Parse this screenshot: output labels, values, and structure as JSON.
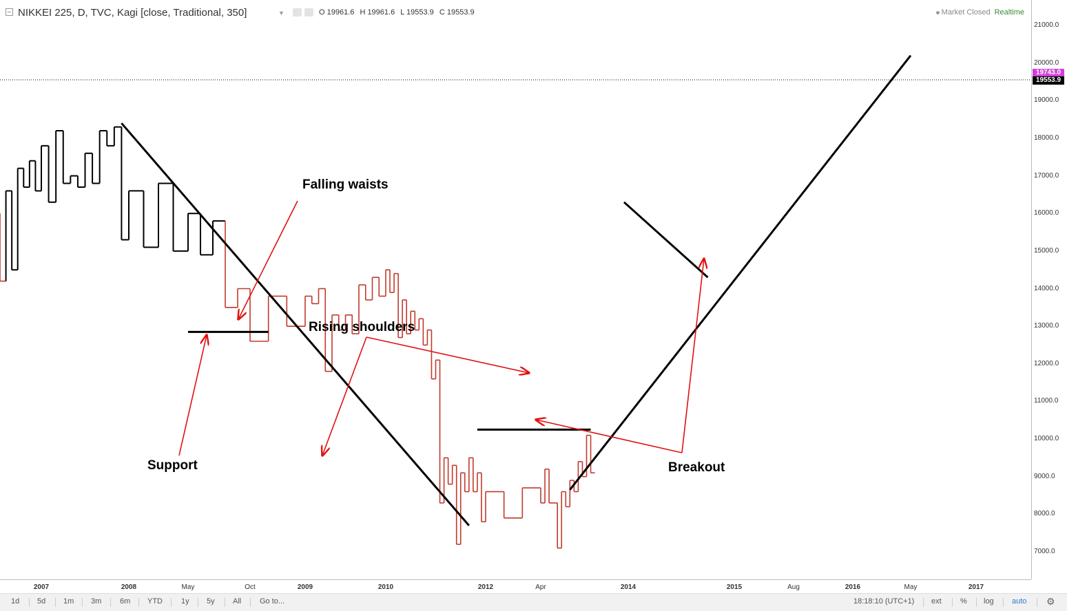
{
  "header": {
    "title": "NIKKEI 225, D, TVC, Kagi [close, Traditional, 350]",
    "ohlc": {
      "o": "O 19961.6",
      "h": "H 19961.6",
      "l": "L 19553.9",
      "c": "C 19553.9"
    },
    "market_status": "Market Closed",
    "realtime": "Realtime"
  },
  "price_axis": {
    "labels": [
      "21000.0",
      "20000.0",
      "19000.0",
      "18000.0",
      "17000.0",
      "16000.0",
      "15000.0",
      "14000.0",
      "13000.0",
      "12000.0",
      "11000.0",
      "10000.0",
      "9000.0",
      "8000.0",
      "7000.0"
    ],
    "tag_high": "19743.0",
    "tag_last": "19553.9"
  },
  "time_axis": {
    "labels": [
      "2007",
      "2008",
      "May",
      "Oct",
      "2009",
      "2010",
      "2012",
      "Apr",
      "2014",
      "2015",
      "Aug",
      "2016",
      "May",
      "2017"
    ]
  },
  "annotations": {
    "falling_waists": "Falling waists",
    "rising_shoulders": "Rising shoulders",
    "support": "Support",
    "breakout": "Breakout"
  },
  "footer": {
    "ranges": [
      "1d",
      "5d",
      "1m",
      "3m",
      "6m",
      "YTD",
      "1y",
      "5y",
      "All"
    ],
    "goto": "Go to...",
    "clock": "18:18:10 (UTC+1)",
    "options": [
      "ext",
      "%",
      "log",
      "auto"
    ]
  },
  "colors": {
    "yang": "#000000",
    "yin": "#c0392b",
    "annotation_arrow": "#e01010",
    "accent": "#2e7bcf",
    "price_tag_high": "#d13fd8"
  },
  "chart_data": {
    "type": "kagi",
    "symbol": "NIKKEI 225",
    "reversal": 350,
    "ylim": [
      6500,
      21500
    ],
    "turning_points": [
      {
        "time": "2006-06",
        "price": 16000
      },
      {
        "time": "2006-07",
        "price": 14200
      },
      {
        "time": "2006-08",
        "price": 16600
      },
      {
        "time": "2006-09",
        "price": 14500
      },
      {
        "time": "2006-10",
        "price": 17200
      },
      {
        "time": "2006-11",
        "price": 16700
      },
      {
        "time": "2006-12",
        "price": 17400
      },
      {
        "time": "2007-01",
        "price": 16600
      },
      {
        "time": "2007-02",
        "price": 17800
      },
      {
        "time": "2007-03",
        "price": 16300
      },
      {
        "time": "2007-04",
        "price": 18200
      },
      {
        "time": "2007-05",
        "price": 16800
      },
      {
        "time": "2007-06",
        "price": 17000
      },
      {
        "time": "2007-07",
        "price": 16700
      },
      {
        "time": "2007-08",
        "price": 17600
      },
      {
        "time": "2007-09",
        "price": 16800
      },
      {
        "time": "2007-10",
        "price": 18200
      },
      {
        "time": "2007-11",
        "price": 17800
      },
      {
        "time": "2007-12",
        "price": 18300
      },
      {
        "time": "2008-01",
        "price": 15300
      },
      {
        "time": "2008-02",
        "price": 16600
      },
      {
        "time": "2008-03",
        "price": 15100
      },
      {
        "time": "2008-04",
        "price": 16800
      },
      {
        "time": "2008-05",
        "price": 15000
      },
      {
        "time": "2008-06",
        "price": 16000
      },
      {
        "time": "2008-07",
        "price": 14900
      },
      {
        "time": "2008-08",
        "price": 15800
      },
      {
        "time": "2008-09",
        "price": 13500
      },
      {
        "time": "2008-10",
        "price": 14000
      },
      {
        "time": "2008-11",
        "price": 12600
      },
      {
        "time": "2008-12",
        "price": 13800
      },
      {
        "time": "2009-01",
        "price": 13000
      },
      {
        "time": "2009-02",
        "price": 13800
      },
      {
        "time": "2009-03",
        "price": 13600
      },
      {
        "time": "2009-04",
        "price": 14000
      },
      {
        "time": "2009-05",
        "price": 11800
      },
      {
        "time": "2009-06",
        "price": 13300
      },
      {
        "time": "2009-07",
        "price": 12900
      },
      {
        "time": "2009-08",
        "price": 13300
      },
      {
        "time": "2009-09",
        "price": 12800
      },
      {
        "time": "2009-10",
        "price": 14100
      },
      {
        "time": "2009-11",
        "price": 13700
      },
      {
        "time": "2009-12",
        "price": 14300
      },
      {
        "time": "2010-01",
        "price": 13800
      },
      {
        "time": "2010-02",
        "price": 14500
      },
      {
        "time": "2010-03",
        "price": 13900
      },
      {
        "time": "2010-04",
        "price": 14400
      },
      {
        "time": "2010-05",
        "price": 12700
      },
      {
        "time": "2010-06",
        "price": 13700
      },
      {
        "time": "2010-07",
        "price": 12800
      },
      {
        "time": "2010-08",
        "price": 13400
      },
      {
        "time": "2010-09",
        "price": 12900
      },
      {
        "time": "2010-10",
        "price": 13200
      },
      {
        "time": "2010-11",
        "price": 12500
      },
      {
        "time": "2010-12",
        "price": 12900
      },
      {
        "time": "2011-01",
        "price": 11600
      },
      {
        "time": "2011-02",
        "price": 12100
      },
      {
        "time": "2011-03",
        "price": 8300
      },
      {
        "time": "2011-04",
        "price": 9500
      },
      {
        "time": "2011-05",
        "price": 8800
      },
      {
        "time": "2011-06",
        "price": 9300
      },
      {
        "time": "2011-07",
        "price": 7200
      },
      {
        "time": "2011-08",
        "price": 9100
      },
      {
        "time": "2011-09",
        "price": 8600
      },
      {
        "time": "2011-10",
        "price": 9500
      },
      {
        "time": "2011-11",
        "price": 8600
      },
      {
        "time": "2011-12",
        "price": 9100
      },
      {
        "time": "2012-01",
        "price": 7800
      },
      {
        "time": "2012-02",
        "price": 8600
      },
      {
        "time": "2012-03",
        "price": 7900
      },
      {
        "time": "2012-04",
        "price": 8700
      },
      {
        "time": "2012-05",
        "price": 8300
      },
      {
        "time": "2012-06",
        "price": 9200
      },
      {
        "time": "2012-07",
        "price": 8300
      },
      {
        "time": "2012-08",
        "price": 8300
      },
      {
        "time": "2012-09",
        "price": 7100
      },
      {
        "time": "2012-10",
        "price": 8600
      },
      {
        "time": "2012-11",
        "price": 8200
      },
      {
        "time": "2012-12",
        "price": 8900
      },
      {
        "time": "2013-01",
        "price": 8600
      },
      {
        "time": "2013-02",
        "price": 9400
      },
      {
        "time": "2013-03",
        "price": 9000
      },
      {
        "time": "2013-04",
        "price": 10100
      },
      {
        "time": "2013-05",
        "price": 9100
      }
    ],
    "trendlines": [
      {
        "from": {
          "time": "2007-12",
          "price": 18400
        },
        "to": {
          "time": "2011-09",
          "price": 7700
        }
      },
      {
        "from": {
          "time": "2008-05",
          "price": 12850
        },
        "to": {
          "time": "2008-11",
          "price": 12850
        }
      },
      {
        "from": {
          "time": "2011-11",
          "price": 10250
        },
        "to": {
          "time": "2013-04",
          "price": 10250
        }
      },
      {
        "from": {
          "time": "2012-11",
          "price": 8650
        },
        "to": {
          "time": "2016-05",
          "price": 20200
        }
      },
      {
        "from": {
          "time": "2013-12",
          "price": 16300
        },
        "to": {
          "time": "2014-10",
          "price": 14300
        }
      }
    ]
  }
}
